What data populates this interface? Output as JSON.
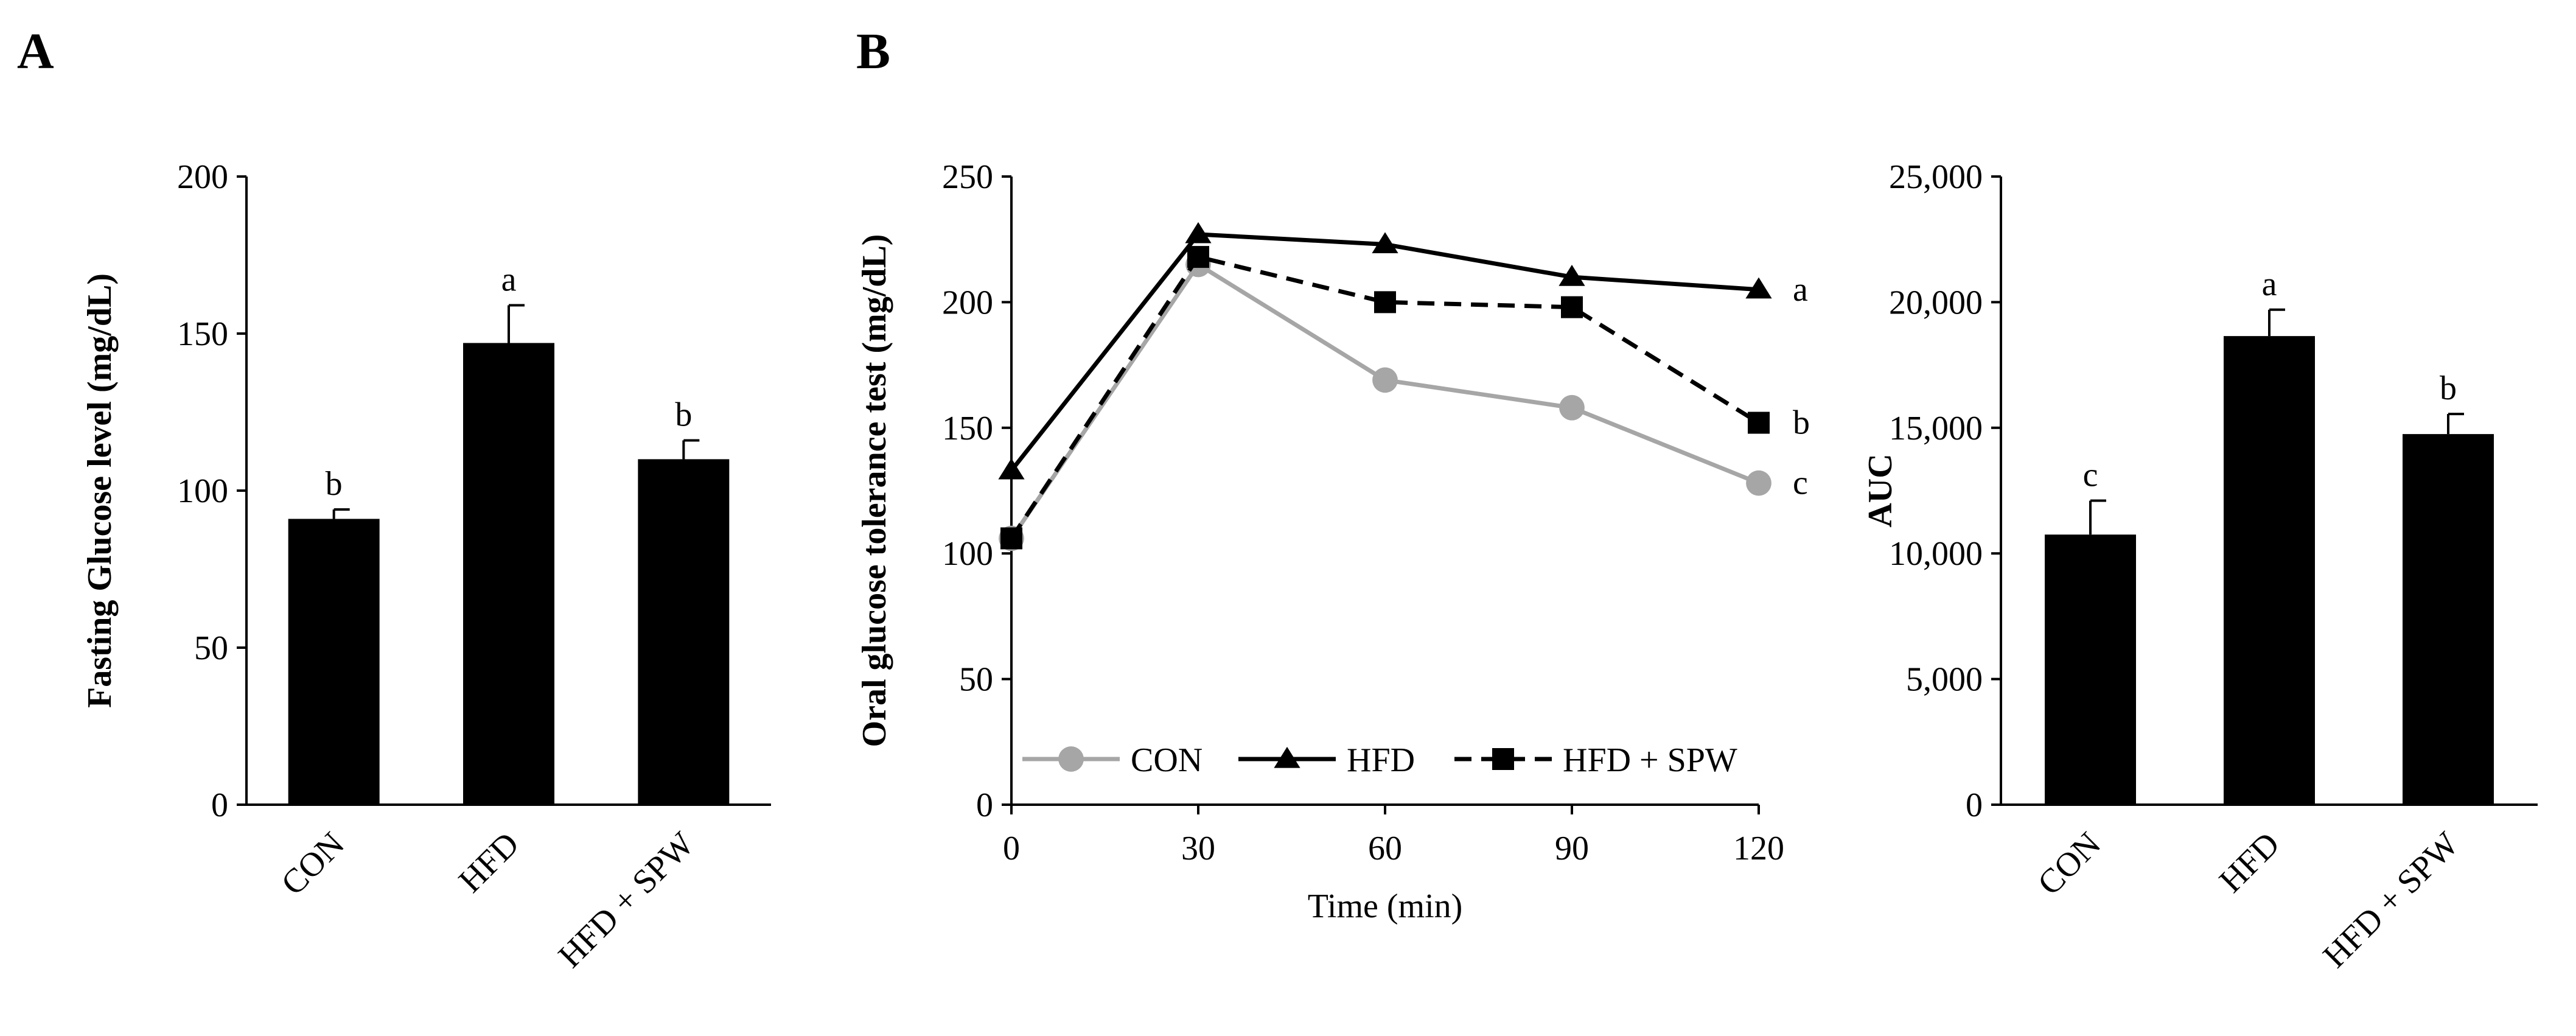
{
  "colors": {
    "bar": "#000000",
    "axis": "#000000",
    "con": "#a6a6a6",
    "hfd": "#000000",
    "hfd_spw": "#000000"
  },
  "chart_data": [
    {
      "panel": "A",
      "type": "bar",
      "title": "",
      "xlabel": "",
      "ylabel": "Fasting Glucose level (mg/dL)",
      "ylim": [
        0,
        200
      ],
      "yticks": [
        0,
        50,
        100,
        150,
        200
      ],
      "ytick_labels": [
        "0",
        "50",
        "100",
        "150",
        "200"
      ],
      "categories": [
        "CON",
        "HFD",
        "HFD + SPW"
      ],
      "values": [
        91,
        147,
        110
      ],
      "errors": [
        3,
        12,
        6
      ],
      "significance": [
        "b",
        "a",
        "b"
      ]
    },
    {
      "panel": "B",
      "type": "line",
      "title": "",
      "xlabel": "Time (min)",
      "ylabel": "Oral glucose tolerance test (mg/dL)",
      "x": [
        0,
        30,
        60,
        90,
        120
      ],
      "xtick_labels": [
        "0",
        "30",
        "60",
        "90",
        "120"
      ],
      "xlim": [
        0,
        120
      ],
      "ylim": [
        0,
        250
      ],
      "yticks": [
        0,
        50,
        100,
        150,
        200,
        250
      ],
      "ytick_labels": [
        "0",
        "50",
        "100",
        "150",
        "200",
        "250"
      ],
      "legend": "bottom-left",
      "series": [
        {
          "name": "CON",
          "values": [
            106,
            215,
            169,
            158,
            128
          ],
          "color": "#a6a6a6",
          "marker": "circle",
          "dash": "solid",
          "end_label": "c"
        },
        {
          "name": "HFD",
          "values": [
            133,
            227,
            223,
            210,
            205
          ],
          "color": "#000000",
          "marker": "triangle",
          "dash": "solid",
          "end_label": "a"
        },
        {
          "name": "HFD + SPW",
          "values": [
            106,
            218,
            200,
            198,
            152
          ],
          "color": "#000000",
          "marker": "square",
          "dash": "dashed",
          "end_label": "b"
        }
      ]
    },
    {
      "panel": "",
      "type": "bar",
      "title": "",
      "xlabel": "",
      "ylabel": "AUC",
      "ylim": [
        0,
        25000
      ],
      "yticks": [
        0,
        5000,
        10000,
        15000,
        20000,
        25000
      ],
      "ytick_labels": [
        "0",
        "5,000",
        "10,000",
        "15,000",
        "20,000",
        "25,000"
      ],
      "categories": [
        "CON",
        "HFD",
        "HFD + SPW"
      ],
      "values": [
        10750,
        18650,
        14750
      ],
      "errors": [
        1350,
        1050,
        800
      ],
      "significance": [
        "c",
        "a",
        "b"
      ]
    }
  ]
}
